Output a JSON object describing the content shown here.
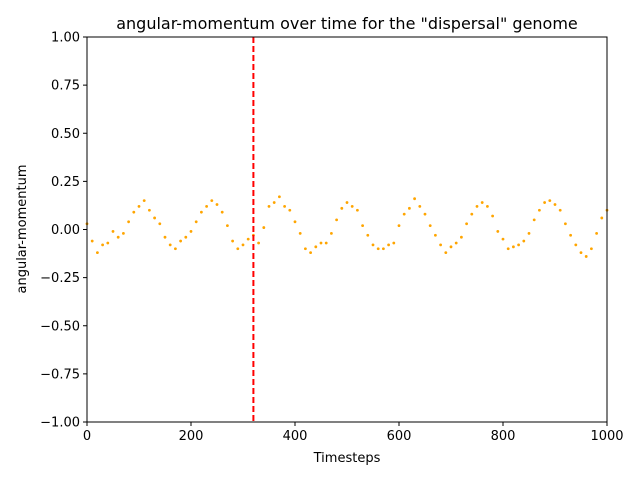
{
  "chart_data": {
    "type": "scatter",
    "title": "angular-momentum over time for the \"dispersal\" genome",
    "xlabel": "Timesteps",
    "ylabel": "angular-momentum",
    "xlim": [
      0,
      1000
    ],
    "ylim": [
      -1.0,
      1.0
    ],
    "x_ticks": [
      "0",
      "200",
      "400",
      "600",
      "800",
      "1000"
    ],
    "y_ticks": [
      "1.00",
      "0.75",
      "0.50",
      "0.25",
      "0.00",
      "−0.25",
      "−0.50",
      "−0.75",
      "−1.00"
    ],
    "grid": false,
    "legend": "none",
    "series_color": "#FFA500",
    "vline": {
      "x": 320,
      "color": "#FF0000",
      "style": "dashed"
    },
    "series": [
      {
        "points": [
          [
            0,
            0.03
          ],
          [
            10,
            -0.06
          ],
          [
            20,
            -0.12
          ],
          [
            30,
            -0.08
          ],
          [
            40,
            -0.07
          ],
          [
            50,
            -0.01
          ],
          [
            60,
            -0.04
          ],
          [
            70,
            -0.02
          ],
          [
            80,
            0.04
          ],
          [
            90,
            0.09
          ],
          [
            100,
            0.12
          ],
          [
            110,
            0.15
          ],
          [
            120,
            0.1
          ],
          [
            130,
            0.06
          ],
          [
            140,
            0.03
          ],
          [
            150,
            -0.04
          ],
          [
            160,
            -0.08
          ],
          [
            170,
            -0.1
          ],
          [
            180,
            -0.06
          ],
          [
            190,
            -0.04
          ],
          [
            200,
            -0.01
          ],
          [
            210,
            0.04
          ],
          [
            220,
            0.09
          ],
          [
            230,
            0.12
          ],
          [
            240,
            0.15
          ],
          [
            250,
            0.13
          ],
          [
            260,
            0.09
          ],
          [
            270,
            0.02
          ],
          [
            280,
            -0.06
          ],
          [
            290,
            -0.1
          ],
          [
            300,
            -0.08
          ],
          [
            310,
            -0.05
          ],
          [
            320,
            -0.03
          ],
          [
            330,
            -0.07
          ],
          [
            340,
            0.01
          ],
          [
            350,
            0.12
          ],
          [
            360,
            0.14
          ],
          [
            370,
            0.17
          ],
          [
            380,
            0.12
          ],
          [
            390,
            0.1
          ],
          [
            400,
            0.04
          ],
          [
            410,
            -0.02
          ],
          [
            420,
            -0.1
          ],
          [
            430,
            -0.12
          ],
          [
            440,
            -0.09
          ],
          [
            450,
            -0.07
          ],
          [
            460,
            -0.07
          ],
          [
            470,
            -0.02
          ],
          [
            480,
            0.05
          ],
          [
            490,
            0.11
          ],
          [
            500,
            0.14
          ],
          [
            510,
            0.12
          ],
          [
            520,
            0.1
          ],
          [
            530,
            0.02
          ],
          [
            540,
            -0.03
          ],
          [
            550,
            -0.08
          ],
          [
            560,
            -0.1
          ],
          [
            570,
            -0.1
          ],
          [
            580,
            -0.08
          ],
          [
            590,
            -0.07
          ],
          [
            600,
            0.02
          ],
          [
            610,
            0.08
          ],
          [
            620,
            0.11
          ],
          [
            630,
            0.16
          ],
          [
            640,
            0.12
          ],
          [
            650,
            0.08
          ],
          [
            660,
            0.02
          ],
          [
            670,
            -0.03
          ],
          [
            680,
            -0.08
          ],
          [
            690,
            -0.12
          ],
          [
            700,
            -0.09
          ],
          [
            710,
            -0.07
          ],
          [
            720,
            -0.04
          ],
          [
            730,
            0.03
          ],
          [
            740,
            0.08
          ],
          [
            750,
            0.12
          ],
          [
            760,
            0.14
          ],
          [
            770,
            0.12
          ],
          [
            780,
            0.07
          ],
          [
            790,
            -0.01
          ],
          [
            800,
            -0.05
          ],
          [
            810,
            -0.1
          ],
          [
            820,
            -0.09
          ],
          [
            830,
            -0.08
          ],
          [
            840,
            -0.06
          ],
          [
            850,
            -0.02
          ],
          [
            860,
            0.05
          ],
          [
            870,
            0.1
          ],
          [
            880,
            0.14
          ],
          [
            890,
            0.15
          ],
          [
            900,
            0.13
          ],
          [
            910,
            0.1
          ],
          [
            920,
            0.03
          ],
          [
            930,
            -0.03
          ],
          [
            940,
            -0.08
          ],
          [
            950,
            -0.12
          ],
          [
            960,
            -0.14
          ],
          [
            970,
            -0.1
          ],
          [
            980,
            -0.02
          ],
          [
            990,
            0.06
          ],
          [
            1000,
            0.1
          ]
        ]
      }
    ]
  }
}
